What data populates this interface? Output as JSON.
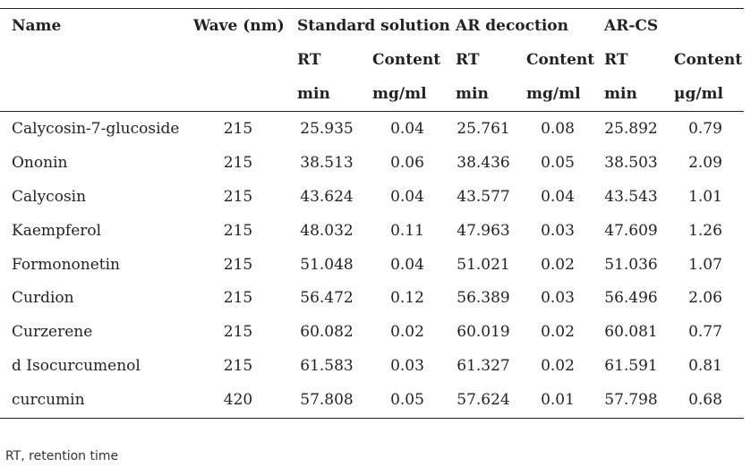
{
  "headers": {
    "name": "Name",
    "wave": "Wave (nm)",
    "standard": "Standard solution",
    "ar_decoction": "AR decoction",
    "ar_cs": "AR-CS",
    "rt": "RT",
    "content": "Content",
    "min": "min",
    "mg_ml": "mg/ml",
    "ug_ml": "µg/ml"
  },
  "rows": [
    {
      "name": "Calycosin-7-glucoside",
      "wave": "215",
      "std_rt": "25.935",
      "std_content": "0.04",
      "ard_rt": "25.761",
      "ard_content": "0.08",
      "arcs_rt": "25.892",
      "arcs_content": "0.79"
    },
    {
      "name": "Ononin",
      "wave": "215",
      "std_rt": "38.513",
      "std_content": "0.06",
      "ard_rt": "38.436",
      "ard_content": "0.05",
      "arcs_rt": "38.503",
      "arcs_content": "2.09"
    },
    {
      "name": "Calycosin",
      "wave": "215",
      "std_rt": "43.624",
      "std_content": "0.04",
      "ard_rt": "43.577",
      "ard_content": "0.04",
      "arcs_rt": "43.543",
      "arcs_content": "1.01"
    },
    {
      "name": "Kaempferol",
      "wave": "215",
      "std_rt": "48.032",
      "std_content": "0.11",
      "ard_rt": "47.963",
      "ard_content": "0.03",
      "arcs_rt": "47.609",
      "arcs_content": "1.26"
    },
    {
      "name": "Formononetin",
      "wave": "215",
      "std_rt": "51.048",
      "std_content": "0.04",
      "ard_rt": "51.021",
      "ard_content": "0.02",
      "arcs_rt": "51.036",
      "arcs_content": "1.07"
    },
    {
      "name": "Curdion",
      "wave": "215",
      "std_rt": "56.472",
      "std_content": "0.12",
      "ard_rt": "56.389",
      "ard_content": "0.03",
      "arcs_rt": "56.496",
      "arcs_content": "2.06"
    },
    {
      "name": "Curzerene",
      "wave": "215",
      "std_rt": "60.082",
      "std_content": "0.02",
      "ard_rt": "60.019",
      "ard_content": "0.02",
      "arcs_rt": "60.081",
      "arcs_content": "0.77"
    },
    {
      "name": "d Isocurcumenol",
      "wave": "215",
      "std_rt": "61.583",
      "std_content": "0.03",
      "ard_rt": "61.327",
      "ard_content": "0.02",
      "arcs_rt": "61.591",
      "arcs_content": "0.81"
    },
    {
      "name": "curcumin",
      "wave": "420",
      "std_rt": "57.808",
      "std_content": "0.05",
      "ard_rt": "57.624",
      "ard_content": "0.01",
      "arcs_rt": "57.798",
      "arcs_content": "0.68"
    }
  ],
  "footnote": "RT, retention time"
}
